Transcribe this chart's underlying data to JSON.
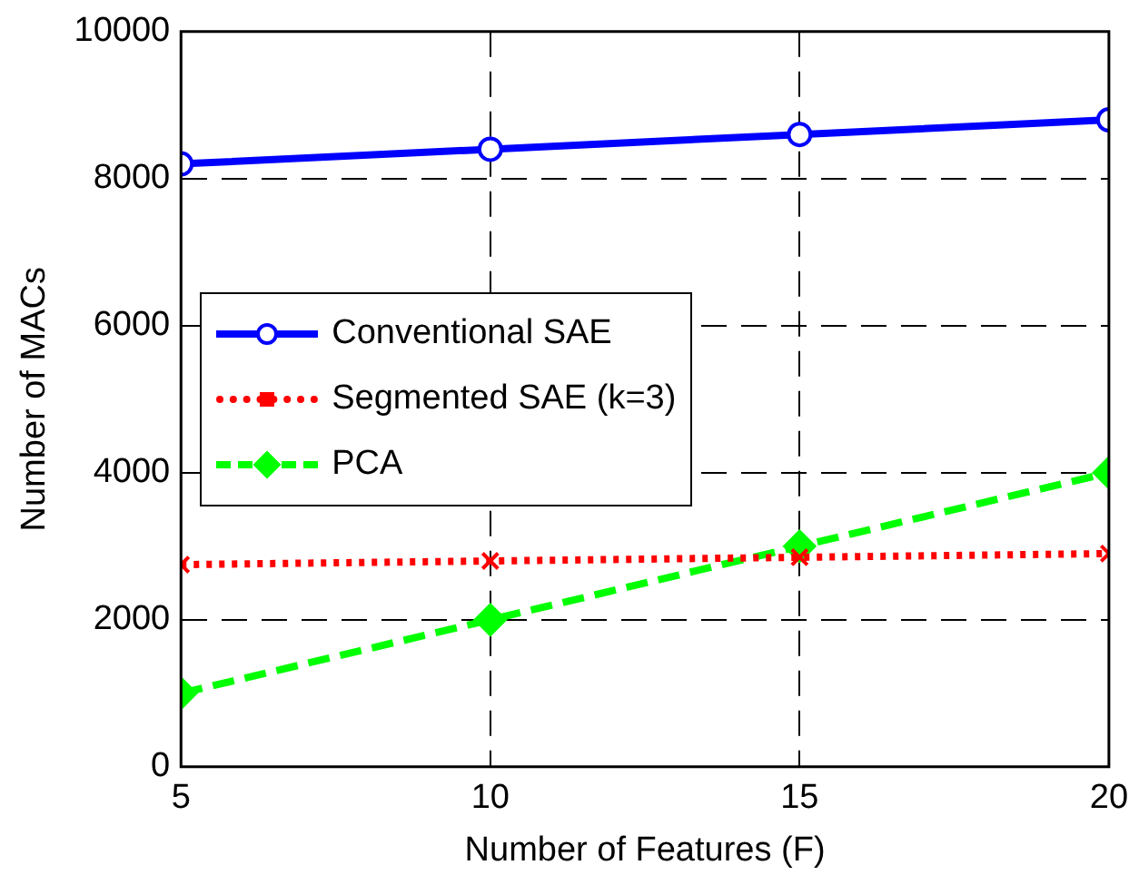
{
  "chart_data": {
    "type": "line",
    "xlabel": "Number of Features (F)",
    "ylabel": "Number of MACs",
    "x": [
      5,
      10,
      15,
      20
    ],
    "series": [
      {
        "name": "Conventional SAE",
        "color": "#0000ff",
        "marker": "circle",
        "line_style": "solid",
        "values": [
          8200,
          8400,
          8600,
          8800
        ]
      },
      {
        "name": "Segmented SAE (k=3)",
        "color": "#ff0000",
        "marker": "cross",
        "line_style": "dotted",
        "values": [
          2750,
          2800,
          2850,
          2900
        ]
      },
      {
        "name": "PCA",
        "color": "#00ff00",
        "marker": "diamond",
        "line_style": "dashed",
        "values": [
          1000,
          2000,
          3000,
          4000
        ]
      }
    ],
    "xlim": [
      5,
      20
    ],
    "xticks": [
      5,
      10,
      15,
      20
    ],
    "ylim": [
      0,
      10000
    ],
    "yticks": [
      0,
      2000,
      4000,
      6000,
      8000,
      10000
    ],
    "grid": true,
    "legend": "left"
  }
}
